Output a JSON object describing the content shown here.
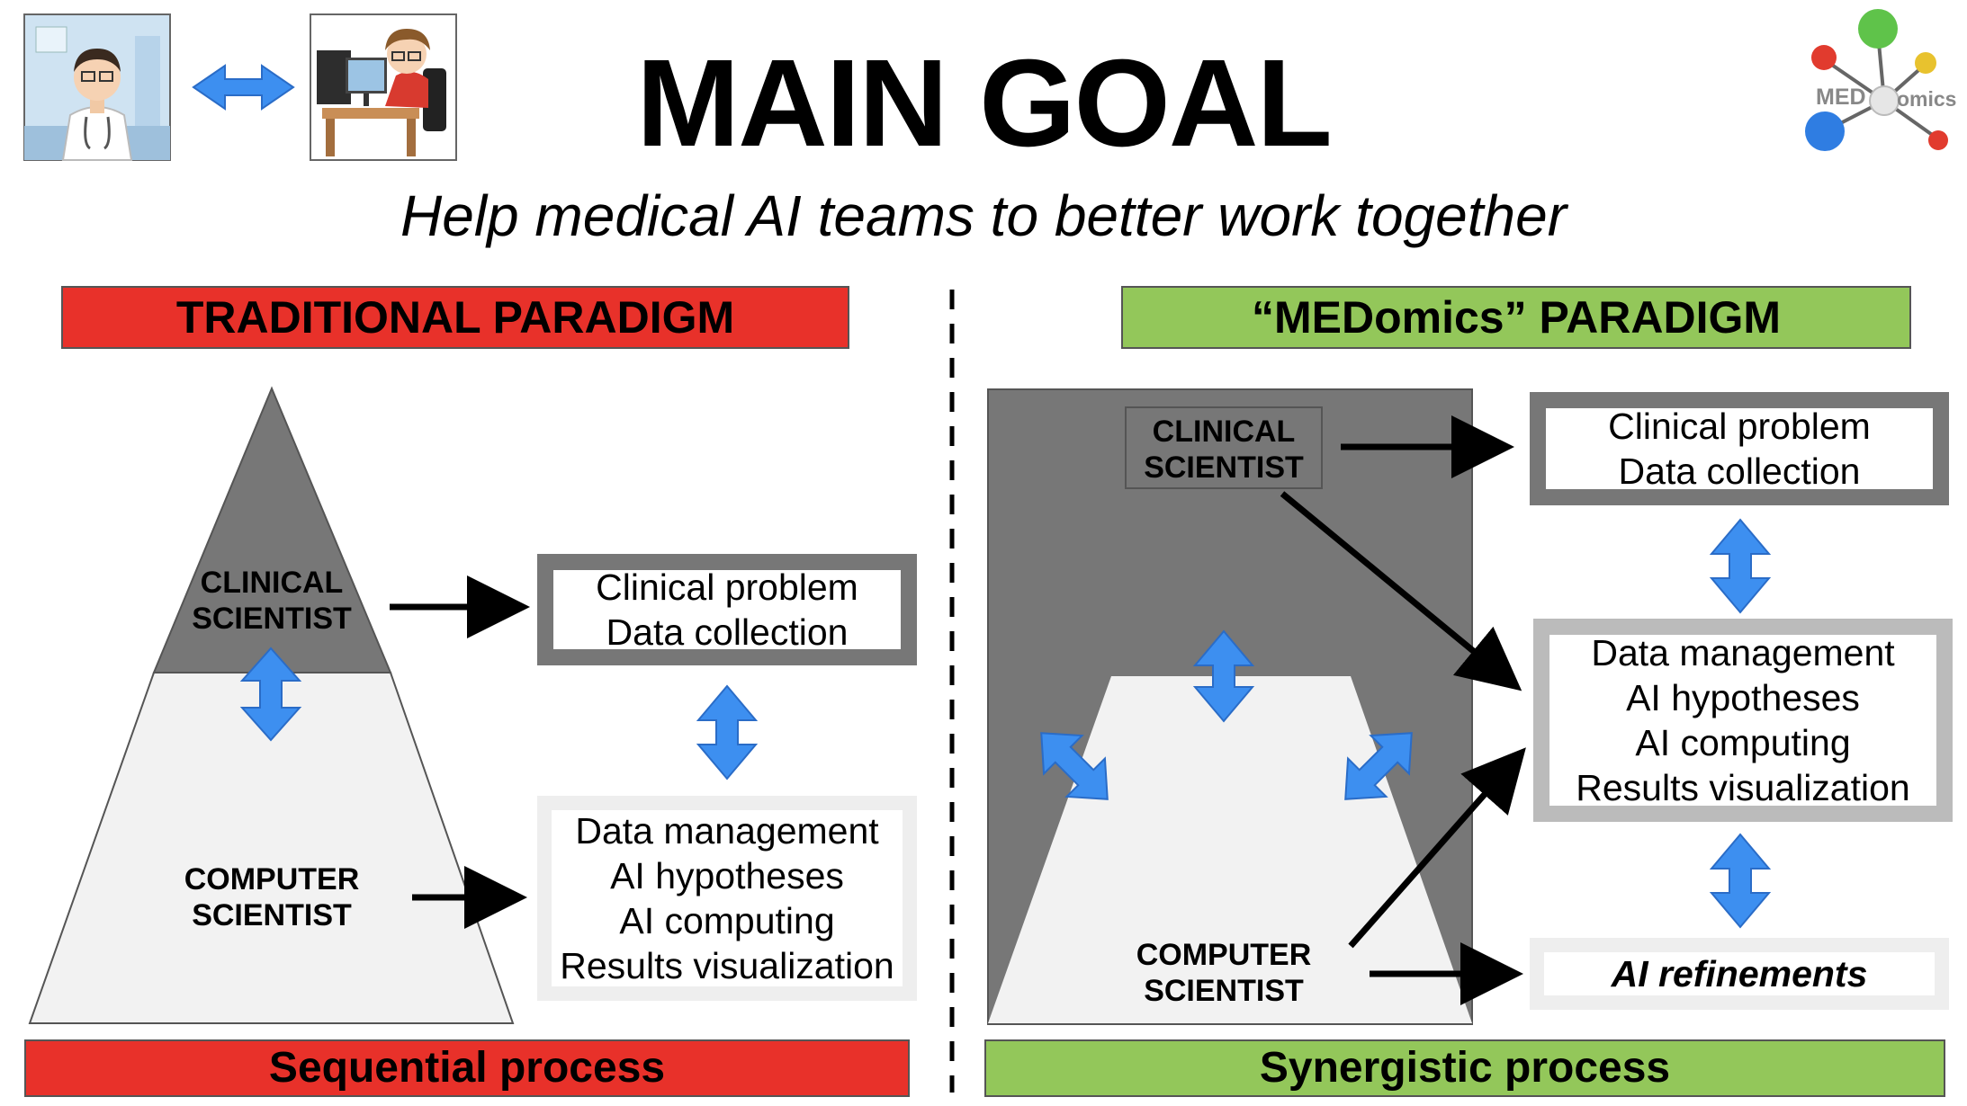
{
  "header": {
    "title": "MAIN GOAL",
    "subtitle": "Help medical AI teams to better work together"
  },
  "logo": {
    "text_left": "MED",
    "text_right": "omics"
  },
  "traditional": {
    "header": "TRADITIONAL PARADIGM",
    "clinical_label": [
      "CLINICAL",
      "SCIENTIST"
    ],
    "computer_label": [
      "COMPUTER",
      "SCIENTIST"
    ],
    "box_clinical": [
      "Clinical problem",
      "Data collection"
    ],
    "box_computer": [
      "Data management",
      "AI hypotheses",
      "AI computing",
      "Results visualization"
    ],
    "footer": "Sequential process"
  },
  "medomics": {
    "header": "“MEDomics” PARADIGM",
    "clinical_label": [
      "CLINICAL",
      "SCIENTIST"
    ],
    "computer_label": [
      "COMPUTER",
      "SCIENTIST"
    ],
    "box_clinical": [
      "Clinical problem",
      "Data collection"
    ],
    "box_computer": [
      "Data management",
      "AI hypotheses",
      "AI computing",
      "Results visualization"
    ],
    "box_refinements": "AI refinements",
    "footer": "Synergistic process"
  },
  "colors": {
    "red": "#e8312a",
    "green": "#93c75a",
    "dark_gray": "#777777",
    "light_gray": "#f2f2f2",
    "blue_arrow": "#3d8ff0"
  }
}
